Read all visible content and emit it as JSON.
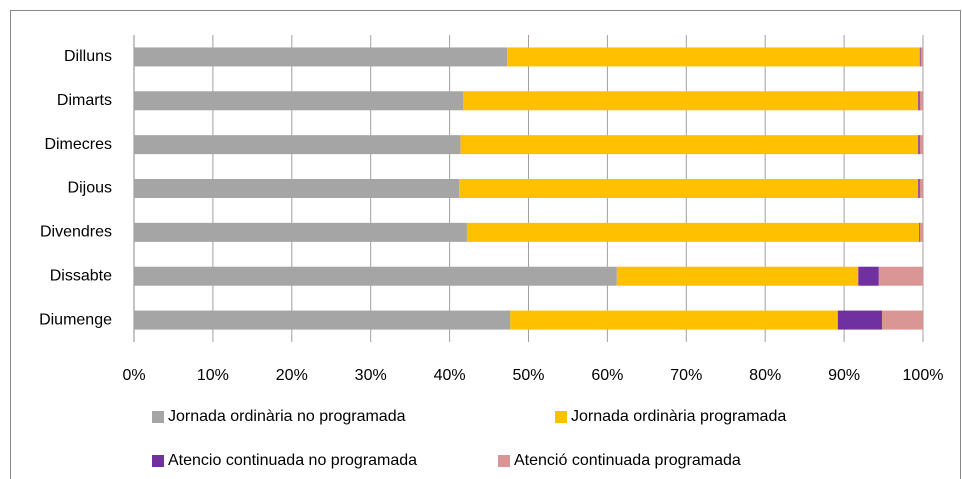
{
  "chart_data": {
    "type": "stacked-bar-horizontal",
    "categories": [
      "Dilluns",
      "Dimarts",
      "Dimecres",
      "Dijous",
      "Divendres",
      "Dissabte",
      "Diumenge"
    ],
    "series": [
      {
        "name": "Jornada ordinària no programada",
        "color": "#a5a5a5",
        "values": [
          47.3,
          41.7,
          41.4,
          41.2,
          42.2,
          61.2,
          47.7
        ]
      },
      {
        "name": "Jornada ordinària programada",
        "color": "#ffc000",
        "values": [
          52.3,
          57.7,
          58.0,
          58.2,
          57.3,
          30.6,
          41.5
        ]
      },
      {
        "name": "Atencio continuada no programada",
        "color": "#7030a0",
        "values": [
          0.1,
          0.2,
          0.2,
          0.2,
          0.1,
          2.6,
          5.6
        ]
      },
      {
        "name": "Atenció continuada programada",
        "color": "#d99694",
        "values": [
          0.3,
          0.4,
          0.4,
          0.4,
          0.4,
          5.6,
          5.2
        ]
      }
    ],
    "xlim": [
      0,
      100
    ],
    "xticks": [
      {
        "value": 0,
        "label": "0%"
      },
      {
        "value": 10,
        "label": "10%"
      },
      {
        "value": 20,
        "label": "20%"
      },
      {
        "value": 30,
        "label": "30%"
      },
      {
        "value": 40,
        "label": "40%"
      },
      {
        "value": 50,
        "label": "50%"
      },
      {
        "value": 60,
        "label": "60%"
      },
      {
        "value": 70,
        "label": "70%"
      },
      {
        "value": 80,
        "label": "80%"
      },
      {
        "value": 90,
        "label": "90%"
      },
      {
        "value": 100,
        "label": "100%"
      }
    ],
    "grid": true,
    "legend": "bottom"
  }
}
